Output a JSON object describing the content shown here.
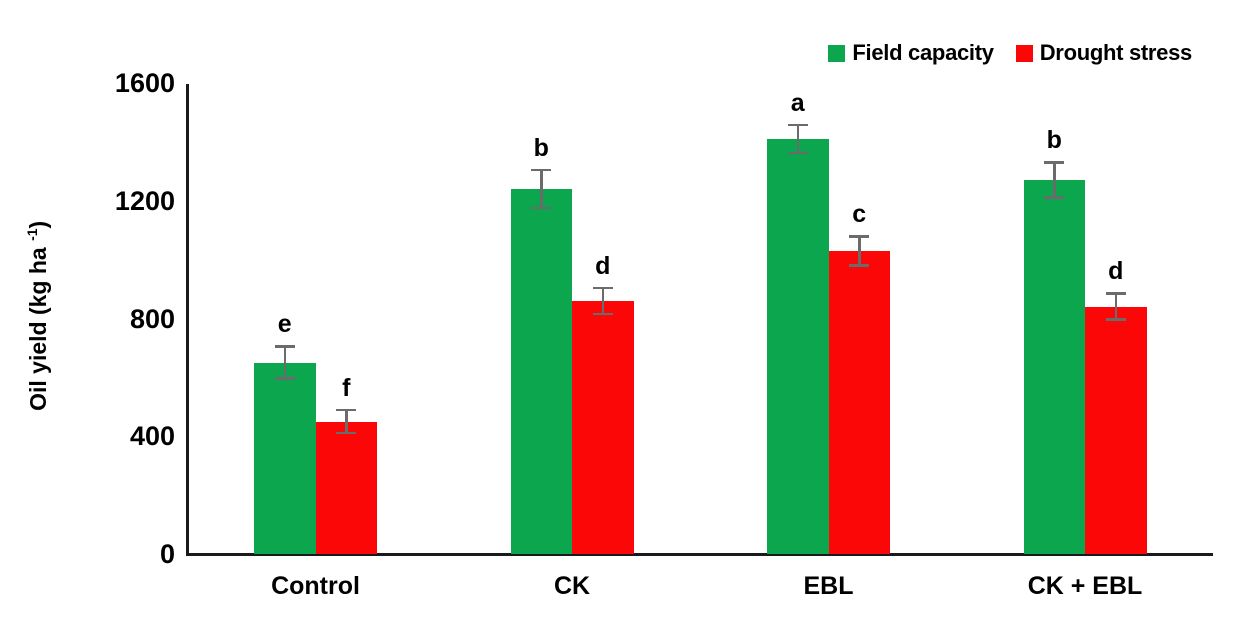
{
  "chart_data": {
    "type": "bar",
    "title": "",
    "ylabel_main": "Oil yield (kg ha",
    "ylabel_sup": "-1",
    "ylabel_end": ")",
    "categories": [
      "Control",
      "CK",
      "EBL",
      "CK + EBL"
    ],
    "series": [
      {
        "name": "Field capacity",
        "color": "#0CA64F",
        "values": [
          650,
          1240,
          1410,
          1270
        ],
        "errors": [
          55,
          65,
          48,
          60
        ],
        "letters": [
          "e",
          "b",
          "a",
          "b"
        ]
      },
      {
        "name": "Drought stress",
        "color": "#FB0707",
        "values": [
          450,
          860,
          1030,
          840
        ],
        "errors": [
          40,
          45,
          50,
          45
        ],
        "letters": [
          "f",
          "d",
          "c",
          "d"
        ]
      }
    ],
    "yticks": [
      0,
      400,
      800,
      1200,
      1600
    ],
    "ylim": [
      0,
      1600
    ],
    "grid": false,
    "legend_position": "top-right",
    "error_bar_color": "#6B6B6B",
    "axis_color": "#1A1A1A"
  }
}
